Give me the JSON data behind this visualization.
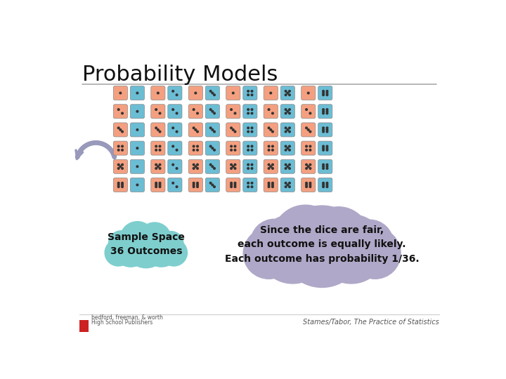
{
  "title": "Probability Models",
  "background_color": "#ffffff",
  "title_fontsize": 22,
  "title_font": "sans-serif",
  "divider_color": "#aaaaaa",
  "salmon_color": "#F4A080",
  "blue_color": "#6BBDD4",
  "dot_color": "#333333",
  "grid_rows": 6,
  "grid_cols": 6,
  "cloud1_text": "Sample Space\n36 Outcomes",
  "cloud1_color": "#7ECECE",
  "cloud2_text": "Since the dice are fair,\neach outcome is equally likely.\nEach outcome has probability 1/36.",
  "cloud2_color": "#B0A8C8",
  "footer_left1": "bedford, freeman, & worth",
  "footer_left2": "High School Publishers",
  "footer_right": "Stames/Tabor, The Practice of Statistics",
  "arrow_color": "#9999BB"
}
